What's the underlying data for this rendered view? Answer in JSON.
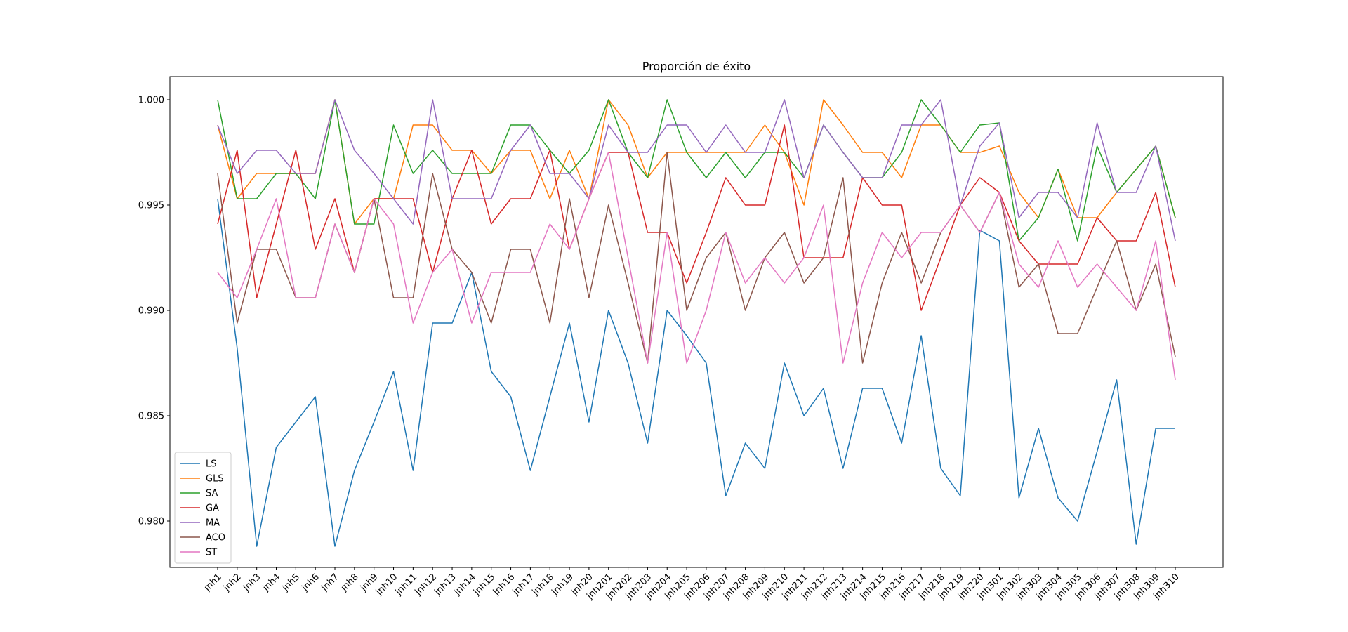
{
  "chart_data": {
    "type": "line",
    "title": "Proporción de éxito",
    "xlabel": "",
    "ylabel": "",
    "ylim": [
      0.9778,
      1.0011
    ],
    "yticks": [
      "0.980",
      "0.985",
      "0.990",
      "0.995",
      "1.000"
    ],
    "ytick_values": [
      0.98,
      0.985,
      0.99,
      0.995,
      1.0
    ],
    "legend_position": "lower-left",
    "grid": false,
    "categories": [
      "jnh1",
      "jnh2",
      "jnh3",
      "jnh4",
      "jnh5",
      "jnh6",
      "jnh7",
      "jnh8",
      "jnh9",
      "jnh10",
      "jnh11",
      "jnh12",
      "jnh13",
      "jnh14",
      "jnh15",
      "jnh16",
      "jnh17",
      "jnh18",
      "jnh19",
      "jnh20",
      "jnh201",
      "jnh202",
      "jnh203",
      "jnh204",
      "jnh205",
      "jnh206",
      "jnh207",
      "jnh208",
      "jnh209",
      "jnh210",
      "jnh211",
      "jnh212",
      "jnh213",
      "jnh214",
      "jnh215",
      "jnh216",
      "jnh217",
      "jnh218",
      "jnh219",
      "jnh220",
      "jnh301",
      "jnh302",
      "jnh303",
      "jnh304",
      "jnh305",
      "jnh306",
      "jnh307",
      "jnh308",
      "jnh309",
      "jnh310"
    ],
    "series": [
      {
        "name": "LS",
        "color": "#1f77b4",
        "values": [
          0.9953,
          0.9882,
          0.9788,
          0.9835,
          0.9847,
          0.9859,
          0.9788,
          0.9824,
          0.9847,
          0.9871,
          0.9824,
          0.9894,
          0.9894,
          0.9918,
          0.9871,
          0.9859,
          0.9824,
          0.9859,
          0.9894,
          0.9847,
          0.99,
          0.9875,
          0.9837,
          0.99,
          0.9888,
          0.9875,
          0.9812,
          0.9837,
          0.9825,
          0.9875,
          0.985,
          0.9863,
          0.9825,
          0.9863,
          0.9863,
          0.9837,
          0.9888,
          0.9825,
          0.9812,
          0.9938,
          0.9933,
          0.9811,
          0.9844,
          0.9811,
          0.98,
          0.9833,
          0.9867,
          0.9789,
          0.9844,
          0.9844
        ]
      },
      {
        "name": "GLS",
        "color": "#ff7f0e",
        "values": [
          0.9988,
          0.9953,
          0.9965,
          0.9965,
          0.9965,
          0.9965,
          1.0,
          0.9941,
          0.9953,
          0.9953,
          0.9988,
          0.9988,
          0.9976,
          0.9976,
          0.9965,
          0.9976,
          0.9976,
          0.9953,
          0.9976,
          0.9953,
          1.0,
          0.9988,
          0.9963,
          0.9975,
          0.9975,
          0.9975,
          0.9975,
          0.9975,
          0.9988,
          0.9975,
          0.995,
          1.0,
          0.9988,
          0.9975,
          0.9975,
          0.9963,
          0.9988,
          0.9988,
          0.9975,
          0.9975,
          0.9978,
          0.9956,
          0.9944,
          0.9967,
          0.9944,
          0.9944,
          0.9956,
          0.9967,
          0.9978,
          0.9944
        ]
      },
      {
        "name": "SA",
        "color": "#2ca02c",
        "values": [
          1.0,
          0.9953,
          0.9953,
          0.9965,
          0.9965,
          0.9953,
          1.0,
          0.9941,
          0.9941,
          0.9988,
          0.9965,
          0.9976,
          0.9965,
          0.9965,
          0.9965,
          0.9988,
          0.9988,
          0.9976,
          0.9965,
          0.9976,
          1.0,
          0.9975,
          0.9963,
          1.0,
          0.9975,
          0.9963,
          0.9975,
          0.9963,
          0.9975,
          0.9975,
          0.9963,
          0.9988,
          0.9975,
          0.9963,
          0.9963,
          0.9975,
          1.0,
          0.9988,
          0.9975,
          0.9988,
          0.9989,
          0.9933,
          0.9944,
          0.9967,
          0.9933,
          0.9978,
          0.9956,
          0.9967,
          0.9978,
          0.9944
        ]
      },
      {
        "name": "GA",
        "color": "#d62728",
        "values": [
          0.9941,
          0.9976,
          0.9906,
          0.9941,
          0.9976,
          0.9929,
          0.9953,
          0.9918,
          0.9953,
          0.9953,
          0.9953,
          0.9918,
          0.9953,
          0.9976,
          0.9941,
          0.9953,
          0.9953,
          0.9976,
          0.9929,
          0.9953,
          0.9975,
          0.9975,
          0.9937,
          0.9937,
          0.9913,
          0.9937,
          0.9963,
          0.995,
          0.995,
          0.9988,
          0.9925,
          0.9925,
          0.9925,
          0.9963,
          0.995,
          0.995,
          0.99,
          0.9925,
          0.995,
          0.9963,
          0.9956,
          0.9933,
          0.9922,
          0.9922,
          0.9922,
          0.9944,
          0.9933,
          0.9933,
          0.9956,
          0.9911
        ]
      },
      {
        "name": "MA",
        "color": "#9467bd",
        "values": [
          0.9988,
          0.9965,
          0.9976,
          0.9976,
          0.9965,
          0.9965,
          1.0,
          0.9976,
          0.9965,
          0.9953,
          0.9941,
          1.0,
          0.9953,
          0.9953,
          0.9953,
          0.9976,
          0.9988,
          0.9965,
          0.9965,
          0.9953,
          0.9988,
          0.9975,
          0.9975,
          0.9988,
          0.9988,
          0.9975,
          0.9988,
          0.9975,
          0.9975,
          1.0,
          0.9963,
          0.9988,
          0.9975,
          0.9963,
          0.9963,
          0.9988,
          0.9988,
          1.0,
          0.995,
          0.9978,
          0.9989,
          0.9944,
          0.9956,
          0.9956,
          0.9944,
          0.9989,
          0.9956,
          0.9956,
          0.9978,
          0.9933
        ]
      },
      {
        "name": "ACO",
        "color": "#8c564b",
        "values": [
          0.9965,
          0.9894,
          0.9929,
          0.9929,
          0.9906,
          0.9906,
          0.9941,
          0.9918,
          0.9953,
          0.9906,
          0.9906,
          0.9965,
          0.9929,
          0.9918,
          0.9894,
          0.9929,
          0.9929,
          0.9894,
          0.9953,
          0.9906,
          0.995,
          0.9913,
          0.9875,
          0.9975,
          0.99,
          0.9925,
          0.9937,
          0.99,
          0.9925,
          0.9937,
          0.9913,
          0.9925,
          0.9963,
          0.9875,
          0.9913,
          0.9937,
          0.9913,
          0.9937,
          0.995,
          0.9937,
          0.9956,
          0.9911,
          0.9922,
          0.9889,
          0.9889,
          0.9911,
          0.9933,
          0.99,
          0.9922,
          0.9878
        ]
      },
      {
        "name": "ST",
        "color": "#e377c2",
        "values": [
          0.9918,
          0.9906,
          0.9929,
          0.9953,
          0.9906,
          0.9906,
          0.9941,
          0.9918,
          0.9953,
          0.9941,
          0.9894,
          0.9918,
          0.9929,
          0.9894,
          0.9918,
          0.9918,
          0.9918,
          0.9941,
          0.9929,
          0.9953,
          0.9975,
          0.9925,
          0.9875,
          0.9937,
          0.9875,
          0.99,
          0.9937,
          0.9913,
          0.9925,
          0.9913,
          0.9925,
          0.995,
          0.9875,
          0.9913,
          0.9937,
          0.9925,
          0.9937,
          0.9937,
          0.995,
          0.9937,
          0.9956,
          0.9922,
          0.9911,
          0.9933,
          0.9911,
          0.9922,
          0.9911,
          0.99,
          0.9933,
          0.9867
        ]
      }
    ]
  }
}
